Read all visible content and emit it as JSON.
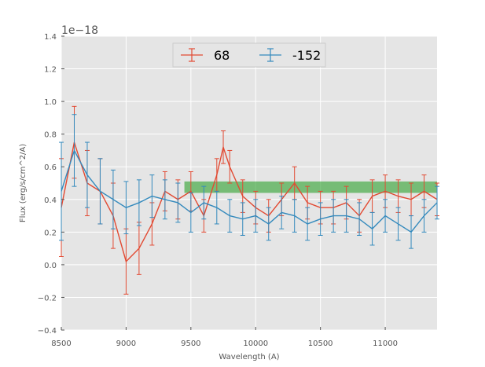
{
  "chart_data": {
    "type": "line",
    "title": "",
    "xlabel": "Wavelength (A)",
    "ylabel": "Flux (erg/s/cm^2/A)",
    "offset_text": "1e−18",
    "xlim": [
      8500,
      11400
    ],
    "ylim": [
      -0.4,
      1.4
    ],
    "x_ticks": [
      8500,
      9000,
      9500,
      10000,
      10500,
      11000
    ],
    "x_tick_labels": [
      "8500",
      "9000",
      "9500",
      "10000",
      "10500",
      "11000"
    ],
    "y_ticks": [
      -0.4,
      -0.2,
      0.0,
      0.2,
      0.4,
      0.6,
      0.8,
      1.0,
      1.2,
      1.4
    ],
    "y_tick_labels": [
      "−0.4",
      "−0.2",
      "0.0",
      "0.2",
      "0.4",
      "0.6",
      "0.8",
      "1.0",
      "1.2",
      "1.4"
    ],
    "grid": true,
    "legend_position": "top-center",
    "band": {
      "y_low": 0.44,
      "y_high": 0.51,
      "x_start": 9450,
      "x_end": 11400,
      "color": "#2ca02c"
    },
    "series": [
      {
        "name": "68",
        "color": "#e24a33",
        "x": [
          8500,
          8600,
          8700,
          8800,
          8900,
          9000,
          9100,
          9200,
          9300,
          9400,
          9500,
          9600,
          9700,
          9750,
          9800,
          9900,
          10000,
          10100,
          10200,
          10300,
          10400,
          10500,
          10600,
          10700,
          10800,
          10900,
          11000,
          11100,
          11200,
          11300,
          11400
        ],
        "y": [
          0.35,
          0.75,
          0.5,
          0.45,
          0.3,
          0.02,
          0.1,
          0.25,
          0.45,
          0.4,
          0.45,
          0.3,
          0.55,
          0.72,
          0.6,
          0.42,
          0.35,
          0.3,
          0.4,
          0.5,
          0.38,
          0.35,
          0.35,
          0.38,
          0.3,
          0.42,
          0.45,
          0.42,
          0.4,
          0.45,
          0.4
        ],
        "err": [
          0.3,
          0.22,
          0.2,
          0.2,
          0.2,
          0.2,
          0.16,
          0.13,
          0.12,
          0.12,
          0.12,
          0.1,
          0.1,
          0.1,
          0.1,
          0.1,
          0.1,
          0.1,
          0.1,
          0.1,
          0.1,
          0.1,
          0.1,
          0.1,
          0.1,
          0.1,
          0.1,
          0.1,
          0.1,
          0.1,
          0.1
        ]
      },
      {
        "name": "-152",
        "color": "#348abd",
        "x": [
          8500,
          8600,
          8700,
          8800,
          8900,
          9000,
          9100,
          9200,
          9300,
          9400,
          9500,
          9600,
          9700,
          9800,
          9900,
          10000,
          10100,
          10200,
          10300,
          10400,
          10500,
          10600,
          10700,
          10800,
          10900,
          11000,
          11100,
          11200,
          11300,
          11400
        ],
        "y": [
          0.45,
          0.7,
          0.55,
          0.45,
          0.4,
          0.35,
          0.38,
          0.42,
          0.4,
          0.38,
          0.32,
          0.38,
          0.35,
          0.3,
          0.28,
          0.3,
          0.25,
          0.32,
          0.3,
          0.25,
          0.28,
          0.3,
          0.3,
          0.28,
          0.22,
          0.3,
          0.25,
          0.2,
          0.3,
          0.38
        ],
        "err": [
          0.3,
          0.22,
          0.2,
          0.2,
          0.18,
          0.16,
          0.14,
          0.13,
          0.12,
          0.12,
          0.12,
          0.1,
          0.1,
          0.1,
          0.1,
          0.1,
          0.1,
          0.1,
          0.1,
          0.1,
          0.1,
          0.1,
          0.1,
          0.1,
          0.1,
          0.1,
          0.1,
          0.1,
          0.1,
          0.1
        ]
      }
    ]
  }
}
